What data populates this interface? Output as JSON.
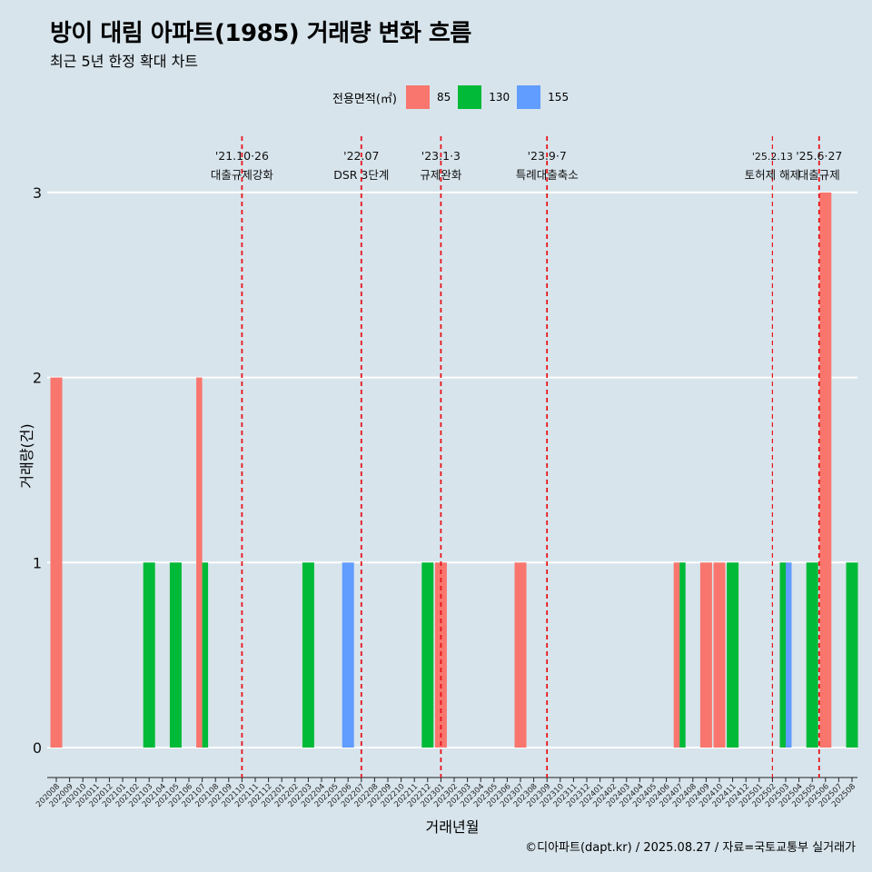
{
  "header": {
    "title": "방이 대림 아파트(1985) 거래량 변화 흐름",
    "subtitle": "최근 5년 한정 확대 차트"
  },
  "legend": {
    "title": "전용면적(㎡)",
    "items": [
      {
        "label": "85",
        "color": "#f8766d"
      },
      {
        "label": "130",
        "color": "#00ba38"
      },
      {
        "label": "155",
        "color": "#619cff"
      }
    ]
  },
  "axes": {
    "xlabel": "거래년월",
    "ylabel": "거래량(건)"
  },
  "caption": "©디아파트(dapt.kr) / 2025.08.27 / 자료=국토교통부 실거래가",
  "chart_data": {
    "type": "bar",
    "stacking": "dodge",
    "xlabel": "거래년월",
    "ylabel": "거래량(건)",
    "ylim": [
      0,
      3
    ],
    "yticks": [
      0,
      1,
      2,
      3
    ],
    "grid": true,
    "legend_position": "top",
    "categories": [
      "202008",
      "202009",
      "202010",
      "202011",
      "202012",
      "202101",
      "202102",
      "202103",
      "202104",
      "202105",
      "202106",
      "202107",
      "202108",
      "202109",
      "202110",
      "202111",
      "202112",
      "202201",
      "202202",
      "202203",
      "202204",
      "202205",
      "202206",
      "202207",
      "202208",
      "202209",
      "202210",
      "202211",
      "202212",
      "202301",
      "202302",
      "202303",
      "202304",
      "202305",
      "202306",
      "202307",
      "202308",
      "202309",
      "202310",
      "202311",
      "202312",
      "202401",
      "202402",
      "202403",
      "202404",
      "202405",
      "202406",
      "202407",
      "202408",
      "202409",
      "202410",
      "202411",
      "202412",
      "202501",
      "202502",
      "202503",
      "202504",
      "202505",
      "202506",
      "202507",
      "202508"
    ],
    "series": [
      {
        "name": "85",
        "color": "#f8766d",
        "points": [
          [
            "202008",
            2
          ],
          [
            "202107",
            2
          ],
          [
            "202301",
            1
          ],
          [
            "202307",
            1
          ],
          [
            "202407",
            1
          ],
          [
            "202409",
            1
          ],
          [
            "202410",
            1
          ],
          [
            "202506",
            3
          ]
        ]
      },
      {
        "name": "130",
        "color": "#00ba38",
        "points": [
          [
            "202103",
            1
          ],
          [
            "202105",
            1
          ],
          [
            "202107",
            1
          ],
          [
            "202203",
            1
          ],
          [
            "202212",
            1
          ],
          [
            "202407",
            1
          ],
          [
            "202411",
            1
          ],
          [
            "202503",
            1
          ],
          [
            "202505",
            1
          ],
          [
            "202508",
            1
          ]
        ]
      },
      {
        "name": "155",
        "color": "#619cff",
        "points": [
          [
            "202206",
            1
          ],
          [
            "202503",
            1
          ]
        ]
      }
    ],
    "annotations": [
      {
        "month": "202110",
        "date": "'21.10·26",
        "label": "대출규제강화",
        "style": "dashed"
      },
      {
        "month": "202207",
        "date": "'22.07",
        "label": "DSR 3단계",
        "style": "dashed"
      },
      {
        "month": "202301",
        "date": "'23.1·3",
        "label": "규제완화",
        "style": "dashed"
      },
      {
        "month": "202309",
        "date": "'23.9·7",
        "label": "특례대출축소",
        "style": "dashed"
      },
      {
        "month": "202502",
        "date": "'25.2.13",
        "label": "토허제 해제",
        "style": "thin-dashed"
      },
      {
        "month": "202506",
        "date": "'25.6·27",
        "label": "대출규제",
        "style": "dashed"
      }
    ]
  }
}
